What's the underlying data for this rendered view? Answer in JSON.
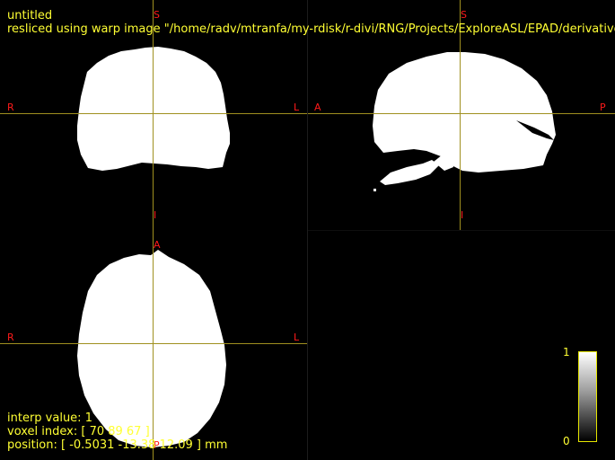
{
  "viewer": {
    "title": "untitled",
    "subtitle": "resliced using warp image \"/home/radv/mtranfa/my-rdisk/r-divi/RNG/Projects/ExploreASL/EPAD/derivatives",
    "colors": {
      "mask": "#ffffff",
      "crosshair": "#a09020",
      "orientation": "#ff1a1a",
      "info_text": "#ffff33",
      "background": "#000000"
    }
  },
  "panes": {
    "coronal": {
      "top": "S",
      "bottom": "I",
      "left": "R",
      "right": "L"
    },
    "sagittal": {
      "top": "S",
      "bottom": "I",
      "left": "A",
      "right": "P"
    },
    "axial": {
      "top": "A",
      "bottom": "P",
      "left": "R",
      "right": "L"
    }
  },
  "info": {
    "interp": "interp value: 1",
    "voxel": "voxel index: [ 70 89 67 ]",
    "position": "position: [ -0.5031 -13.38 12.09 ] mm"
  },
  "colorbar": {
    "max_label": "1",
    "min_label": "0",
    "colormap": "grayscale"
  }
}
